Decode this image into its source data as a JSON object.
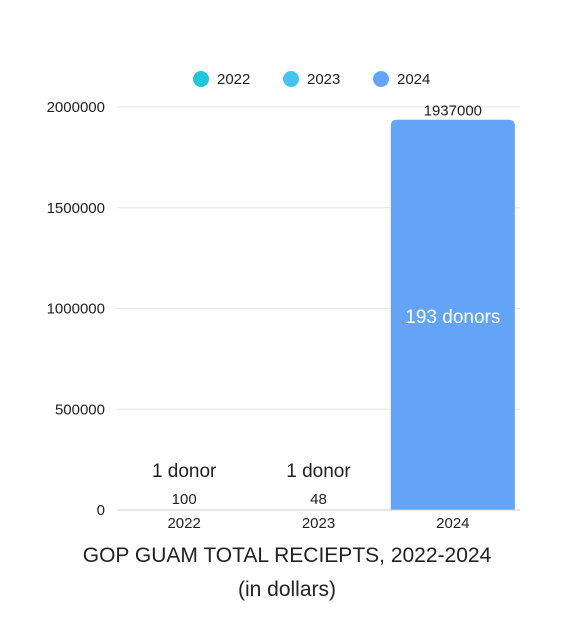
{
  "chart_data": {
    "type": "bar",
    "title": "GOP GUAM TOTAL RECIEPTS, 2022-2024",
    "subtitle": "(in dollars)",
    "categories": [
      "2022",
      "2023",
      "2024"
    ],
    "values": [
      100,
      48,
      1937000
    ],
    "value_labels": [
      "100",
      "48",
      "1937000"
    ],
    "donor_labels": [
      "1 donor",
      "1 donor",
      "193 donors"
    ],
    "legend": [
      {
        "name": "2022",
        "color": "#1ec8d8"
      },
      {
        "name": "2023",
        "color": "#46c4f0"
      },
      {
        "name": "2024",
        "color": "#64a4f6"
      }
    ],
    "bar_colors": [
      "#1ec8d8",
      "#46c4f0",
      "#64a4f6"
    ],
    "ylim": [
      0,
      2000000
    ],
    "yticks": [
      "0",
      "500000",
      "1000000",
      "1500000",
      "2000000"
    ],
    "ytick_values": [
      0,
      500000,
      1000000,
      1500000,
      2000000
    ],
    "grid": true,
    "legend_position": "top"
  }
}
